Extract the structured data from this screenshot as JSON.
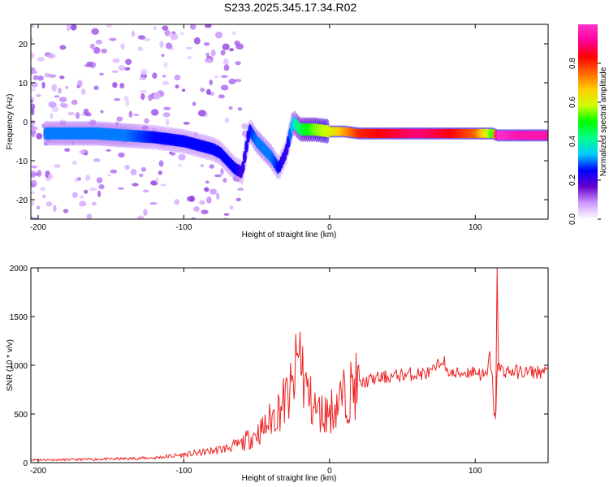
{
  "title": "S233.2025.345.17.34.R02",
  "chart_data": [
    {
      "type": "heatmap",
      "title": "S233.2025.345.17.34.R02",
      "xlabel": "Height of straight line (km)",
      "ylabel": "Frequency (Hz)",
      "xlim": [
        -205,
        150
      ],
      "ylim": [
        -25,
        25
      ],
      "xticks": [
        -200,
        -100,
        0,
        100
      ],
      "yticks": [
        -20,
        -10,
        0,
        10,
        20
      ],
      "colorbar": {
        "label": "Normalized spectral amplitude",
        "range": [
          0,
          1
        ],
        "ticks": [
          "0.0",
          "0.2",
          "0.4",
          "0.6",
          "0.8"
        ],
        "colors": [
          "#ffffff",
          "#cc99ff",
          "#6600cc",
          "#0000ff",
          "#00ccff",
          "#00ff88",
          "#00ff00",
          "#ccff00",
          "#ffcc00",
          "#ff6600",
          "#ff0000",
          "#ff0099",
          "#ff33cc"
        ]
      },
      "ridge": {
        "x": [
          -195,
          -180,
          -160,
          -140,
          -120,
          -110,
          -100,
          -90,
          -80,
          -75,
          -70,
          -65,
          -60,
          -55,
          -50,
          -45,
          -40,
          -35,
          -30,
          -25,
          -20,
          -10,
          0,
          10,
          20,
          40,
          60,
          80,
          100,
          108,
          112,
          115,
          130,
          150
        ],
        "frequency": [
          -3,
          -3,
          -3,
          -3.5,
          -4,
          -4.5,
          -5,
          -6,
          -7,
          -8,
          -10,
          -12,
          -13,
          -2,
          -5,
          -7,
          -9,
          -12,
          -8,
          0,
          -2,
          -2,
          -2.5,
          -2.5,
          -3,
          -3,
          -3,
          -3,
          -3,
          -3,
          -3,
          -3.5,
          -3.5,
          -3.5
        ],
        "amplitude": [
          0.3,
          0.3,
          0.3,
          0.3,
          0.25,
          0.25,
          0.25,
          0.25,
          0.25,
          0.25,
          0.25,
          0.25,
          0.2,
          0.25,
          0.3,
          0.3,
          0.3,
          0.25,
          0.2,
          0.35,
          0.45,
          0.55,
          0.6,
          0.7,
          0.8,
          0.85,
          0.9,
          0.85,
          0.75,
          0.6,
          0.5,
          1.0,
          0.95,
          0.95
        ]
      }
    },
    {
      "type": "line",
      "xlabel": "Height of straight line (km)",
      "ylabel": "SNR (10 * v/v)",
      "xlim": [
        -205,
        150
      ],
      "ylim": [
        0,
        2000
      ],
      "xticks": [
        -200,
        -100,
        0,
        100
      ],
      "yticks": [
        0,
        500,
        1000,
        1500,
        2000
      ],
      "color": "#ee2222",
      "series": [
        {
          "x": [
            -205,
            -180,
            -160,
            -140,
            -120,
            -100,
            -90,
            -80,
            -70,
            -60,
            -50,
            -45,
            -40,
            -35,
            -30,
            -25,
            -22,
            -20,
            -18,
            -15,
            -12,
            -10,
            -8,
            -5,
            0,
            5,
            10,
            15,
            20,
            30,
            40,
            50,
            60,
            70,
            75,
            78,
            80,
            82,
            85,
            90,
            95,
            100,
            105,
            108,
            110,
            112,
            113,
            114,
            115,
            117,
            120,
            130,
            140,
            150
          ],
          "y": [
            30,
            30,
            35,
            40,
            50,
            80,
            100,
            120,
            150,
            200,
            300,
            350,
            450,
            550,
            650,
            750,
            1050,
            1150,
            900,
            700,
            600,
            560,
            520,
            500,
            520,
            600,
            680,
            750,
            800,
            860,
            880,
            900,
            910,
            920,
            1000,
            1100,
            900,
            950,
            900,
            920,
            930,
            940,
            900,
            880,
            1100,
            800,
            500,
            450,
            1000,
            960,
            940,
            930,
            930,
            930
          ]
        }
      ]
    }
  ]
}
